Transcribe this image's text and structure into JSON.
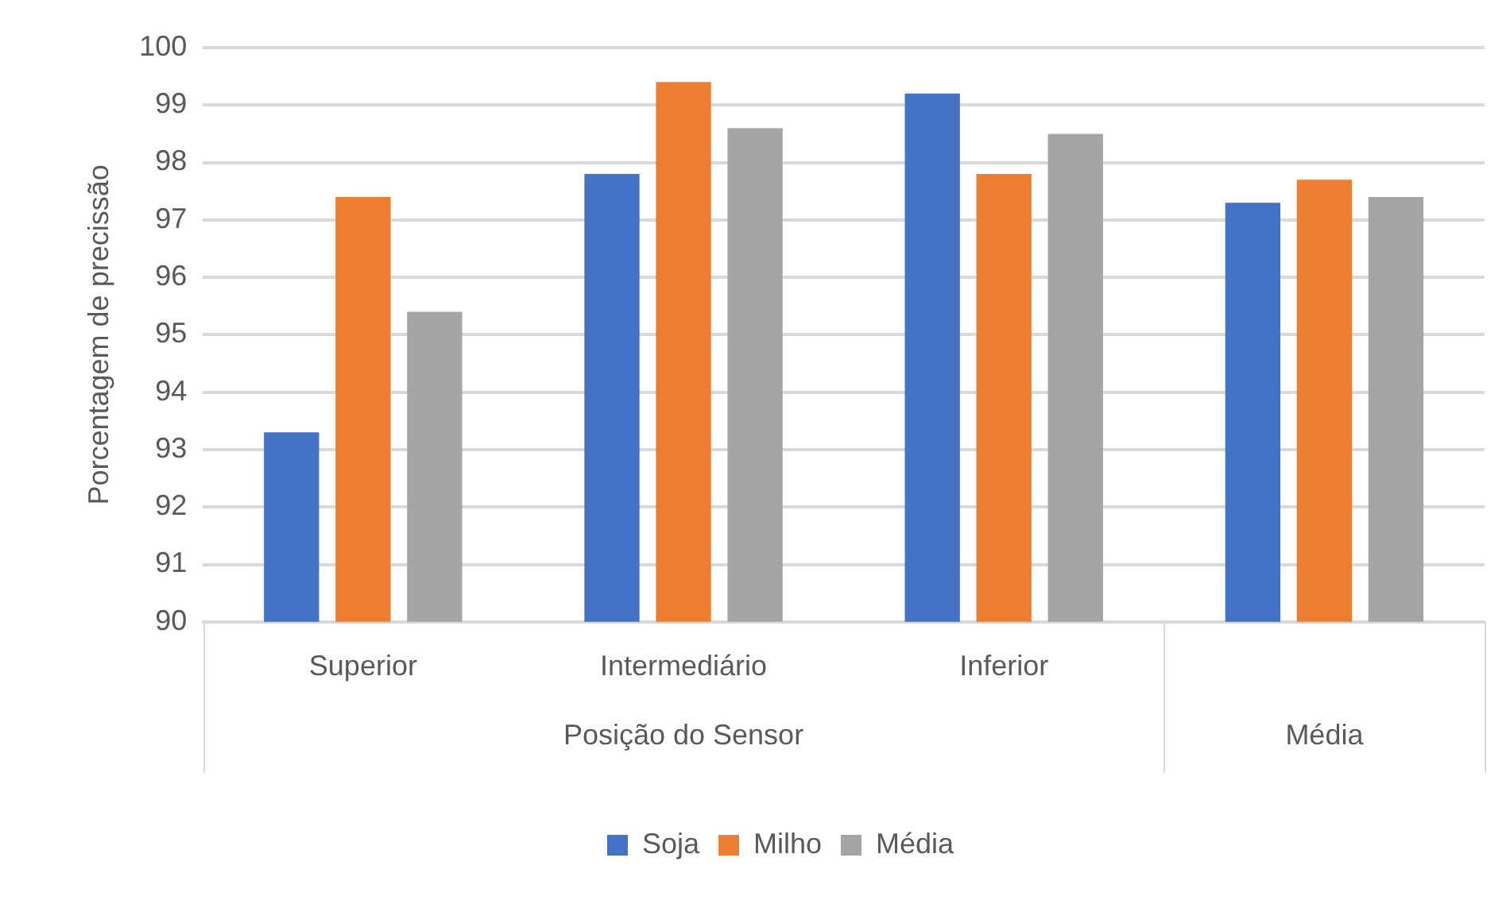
{
  "chart_data": {
    "type": "bar",
    "ylabel": "Porcentagem de precissão",
    "categories": [
      "Superior",
      "Intermediário",
      "Inferior",
      null
    ],
    "series": [
      {
        "name": "Soja",
        "color": "#4472c4",
        "values": [
          93.3,
          97.8,
          99.2,
          97.3
        ]
      },
      {
        "name": "Milho",
        "color": "#ed7d31",
        "values": [
          97.4,
          99.4,
          97.8,
          97.7
        ]
      },
      {
        "name": "Média",
        "color": "#a5a5a5",
        "values": [
          95.4,
          98.6,
          98.5,
          97.4
        ]
      }
    ],
    "annotations": [
      "Posição do Sensor",
      "Média"
    ],
    "ylim": [
      90,
      100
    ],
    "yticks": [
      90,
      91,
      92,
      93,
      94,
      95,
      96,
      97,
      98,
      99,
      100
    ],
    "grid": "y",
    "legend": "bottom"
  }
}
